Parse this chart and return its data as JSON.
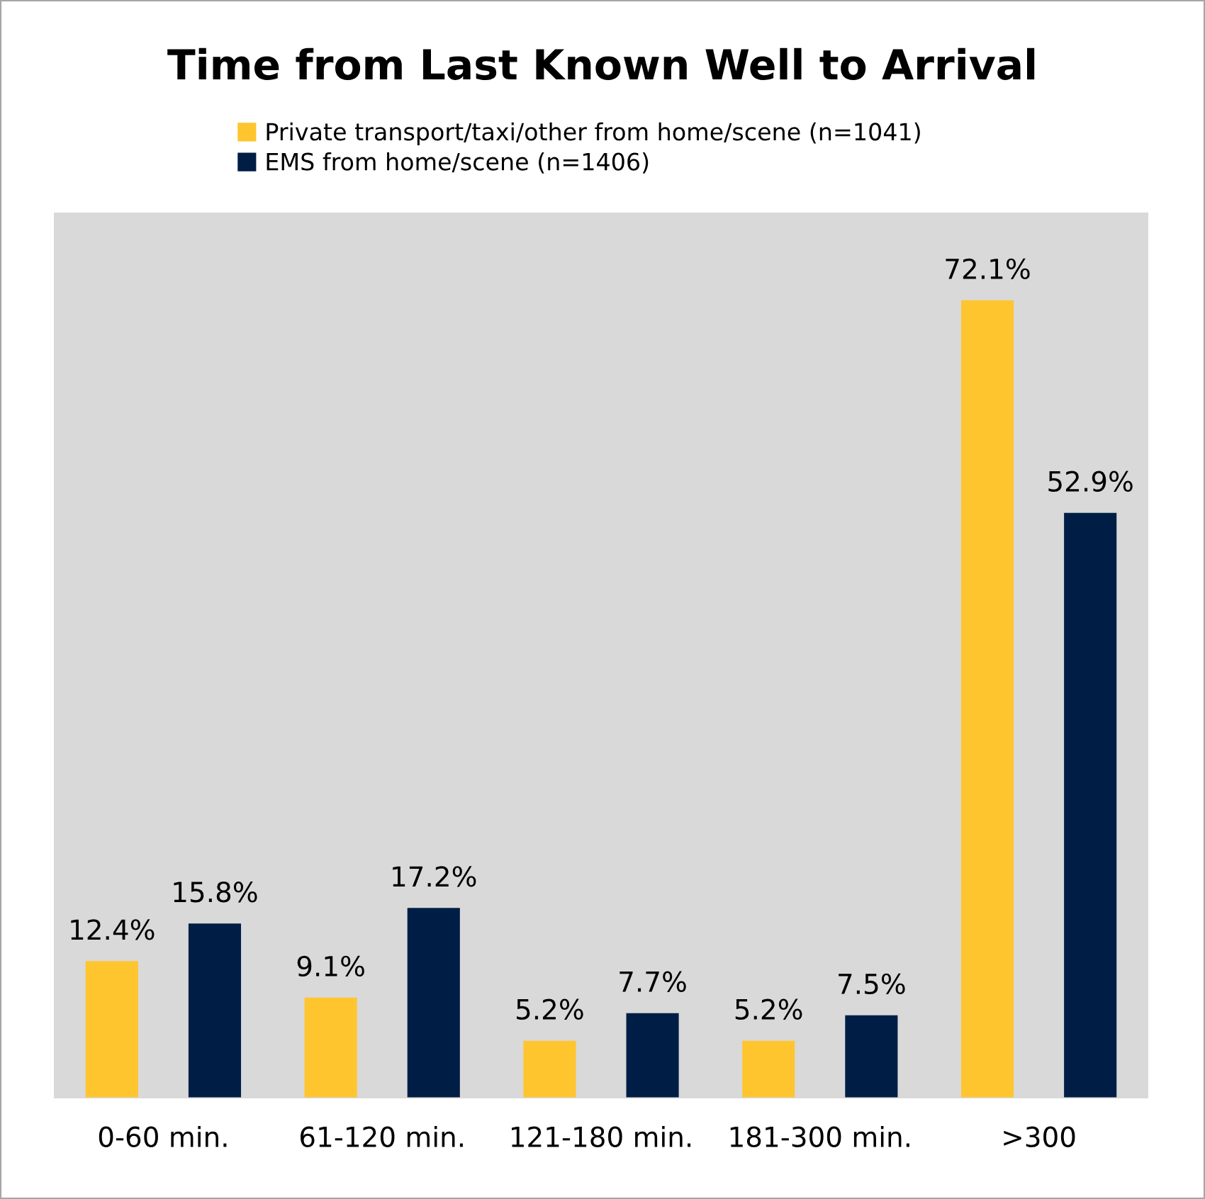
{
  "chart_data": {
    "type": "bar",
    "title": "Time from Last Known Well to Arrival",
    "categories": [
      "0-60 min.",
      "61-120 min.",
      "121-180 min.",
      "181-300 min.",
      ">300"
    ],
    "series": [
      {
        "name": "Private transport/taxi/other from home/scene (n=1041)",
        "color": "#ffc52f",
        "values": [
          12.4,
          9.1,
          5.2,
          5.2,
          72.1
        ],
        "value_labels": [
          "12.4%",
          "9.1%",
          "5.2%",
          "5.2%",
          "72.1%"
        ]
      },
      {
        "name": "EMS from home/scene (n=1406)",
        "color": "#001e45",
        "values": [
          15.8,
          17.2,
          7.7,
          7.5,
          52.9
        ],
        "value_labels": [
          "15.8%",
          "17.2%",
          "7.7%",
          "7.5%",
          "52.9%"
        ]
      }
    ],
    "legend": "top",
    "grid": false
  }
}
